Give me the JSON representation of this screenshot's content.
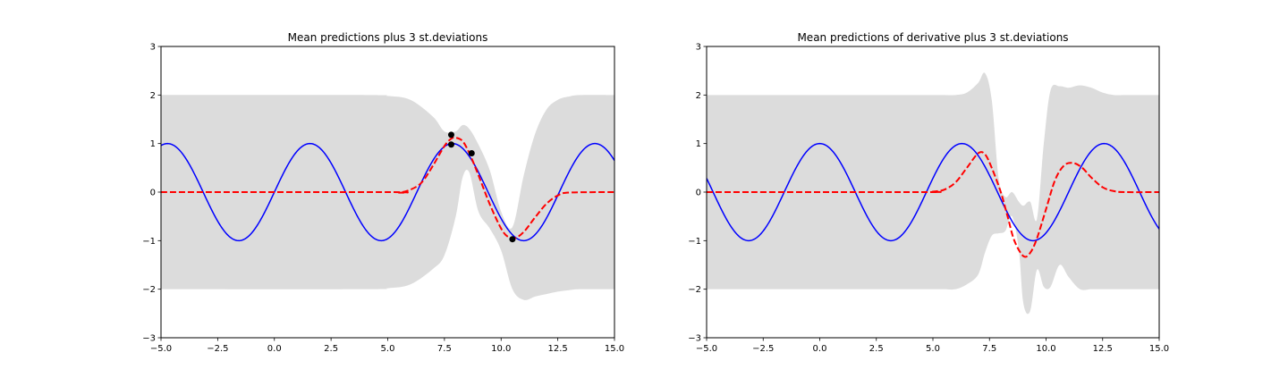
{
  "chart_data": [
    {
      "type": "line",
      "title": "Mean predictions plus 3 st.deviations",
      "xlim": [
        -5,
        15
      ],
      "ylim": [
        -3,
        3
      ],
      "grid": false,
      "xticks": [
        -5,
        -2.5,
        0,
        2.5,
        5,
        7.5,
        10,
        12.5,
        15
      ],
      "xtick_labels": [
        "−5.0",
        "−2.5",
        "0.0",
        "2.5",
        "5.0",
        "7.5",
        "10.0",
        "12.5",
        "15.0"
      ],
      "yticks": [
        -3,
        -2,
        -1,
        0,
        1,
        2,
        3
      ],
      "ytick_labels": [
        "−3",
        "−2",
        "−1",
        "0",
        "1",
        "2",
        "3"
      ],
      "band": {
        "color": "#dcdcdc",
        "x": [
          -5,
          4,
          5,
          6,
          7,
          7.5,
          8.0,
          8.3,
          8.6,
          9.0,
          9.5,
          10.0,
          10.5,
          11.0,
          11.5,
          12.0,
          12.5,
          13.0,
          13.5,
          15
        ],
        "upper": [
          2.0,
          2.0,
          1.98,
          1.9,
          1.55,
          1.25,
          1.25,
          1.38,
          1.3,
          0.98,
          0.45,
          -0.4,
          -0.72,
          0.35,
          1.2,
          1.7,
          1.9,
          1.97,
          2.0,
          2.0
        ],
        "lower": [
          -2.0,
          -2.0,
          -1.98,
          -1.9,
          -1.58,
          -1.3,
          -0.5,
          0.3,
          0.4,
          -0.4,
          -0.75,
          -1.2,
          -2.0,
          -2.22,
          -2.15,
          -2.1,
          -2.05,
          -2.02,
          -2.0,
          -2.0
        ]
      },
      "series": [
        {
          "color": "#0000ff",
          "style": "solid",
          "function": "sin",
          "phase": 0,
          "x": [
            -5,
            15
          ]
        },
        {
          "color": "#ff0000",
          "style": "dashed",
          "x": [
            -5,
            5.0,
            5.5,
            6.0,
            6.5,
            7.0,
            7.5,
            7.8,
            8.0,
            8.3,
            8.6,
            9.0,
            9.5,
            10.0,
            10.3,
            10.6,
            11.0,
            11.5,
            12.0,
            12.5,
            13.0,
            15
          ],
          "y": [
            0,
            0,
            -0.01,
            0.05,
            0.2,
            0.55,
            0.95,
            1.1,
            1.12,
            1.05,
            0.8,
            0.35,
            -0.25,
            -0.75,
            -0.92,
            -0.95,
            -0.82,
            -0.52,
            -0.24,
            -0.07,
            -0.01,
            0
          ]
        }
      ],
      "points": {
        "color": "#000000",
        "x": [
          7.8,
          7.8,
          8.7,
          10.5
        ],
        "y": [
          1.18,
          0.98,
          0.8,
          -0.97
        ]
      }
    },
    {
      "type": "line",
      "title": "Mean predictions of derivative plus 3 st.deviations",
      "xlim": [
        -5,
        15
      ],
      "ylim": [
        -3,
        3
      ],
      "grid": false,
      "xticks": [
        -5,
        -2.5,
        0,
        2.5,
        5,
        7.5,
        10,
        12.5,
        15
      ],
      "xtick_labels": [
        "−5.0",
        "−2.5",
        "0.0",
        "2.5",
        "5.0",
        "7.5",
        "10.0",
        "12.5",
        "15.0"
      ],
      "yticks": [
        -3,
        -2,
        -1,
        0,
        1,
        2,
        3
      ],
      "ytick_labels": [
        "−3",
        "−2",
        "−1",
        "0",
        "1",
        "2",
        "3"
      ],
      "band": {
        "color": "#dcdcdc",
        "x": [
          -5,
          5,
          5.5,
          6.0,
          6.5,
          7.0,
          7.3,
          7.6,
          7.9,
          8.2,
          8.5,
          8.8,
          9.0,
          9.3,
          9.6,
          9.9,
          10.2,
          10.6,
          11.0,
          11.5,
          12.0,
          12.5,
          13.0,
          13.5,
          15
        ],
        "upper": [
          2.0,
          2.0,
          2.0,
          2.0,
          2.05,
          2.25,
          2.45,
          1.9,
          0.3,
          -0.1,
          0.0,
          -0.2,
          -0.28,
          -0.2,
          -0.55,
          1.0,
          2.1,
          2.18,
          2.15,
          2.2,
          2.15,
          2.05,
          2.0,
          2.0,
          2.0
        ],
        "lower": [
          -2.0,
          -2.0,
          -2.0,
          -2.0,
          -1.9,
          -1.7,
          -1.25,
          -0.9,
          -0.85,
          -0.8,
          -0.5,
          -1.2,
          -2.3,
          -2.45,
          -1.6,
          -1.95,
          -1.95,
          -1.5,
          -1.75,
          -2.0,
          -2.0,
          -2.0,
          -2.0,
          -2.0,
          -2.0
        ]
      },
      "series": [
        {
          "color": "#0000ff",
          "style": "solid",
          "function": "sin",
          "phase": 1.5708,
          "x": [
            -5,
            15
          ]
        },
        {
          "color": "#ff0000",
          "style": "dashed",
          "x": [
            -5,
            4.5,
            5.0,
            5.5,
            6.0,
            6.5,
            7.0,
            7.3,
            7.6,
            8.0,
            8.3,
            8.6,
            9.0,
            9.3,
            9.6,
            10.0,
            10.4,
            10.8,
            11.2,
            11.6,
            12.0,
            12.5,
            13.0,
            13.5,
            15
          ],
          "y": [
            0,
            0,
            0.01,
            0.05,
            0.2,
            0.5,
            0.8,
            0.78,
            0.5,
            0.0,
            -0.5,
            -1.0,
            -1.32,
            -1.25,
            -0.95,
            -0.35,
            0.25,
            0.55,
            0.6,
            0.5,
            0.3,
            0.1,
            0.02,
            0.0,
            0
          ]
        }
      ]
    }
  ]
}
